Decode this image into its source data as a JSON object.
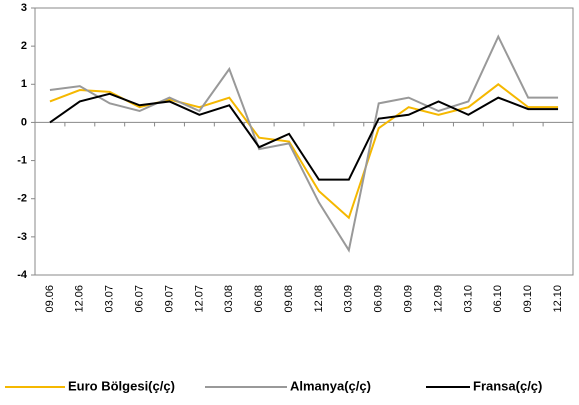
{
  "chart_data": {
    "type": "line",
    "categories": [
      "09.06",
      "12.06",
      "03.07",
      "06.07",
      "09.07",
      "12.07",
      "03.08",
      "06.08",
      "09.08",
      "12.08",
      "03.09",
      "06.09",
      "09.09",
      "12.09",
      "03.10",
      "06.10",
      "09.10",
      "12.10"
    ],
    "series": [
      {
        "name": "Euro Bölgesi(ç/ç)",
        "color": "#f5b800",
        "values": [
          0.55,
          0.85,
          0.8,
          0.4,
          0.6,
          0.4,
          0.65,
          -0.4,
          -0.5,
          -1.8,
          -2.5,
          -0.15,
          0.4,
          0.2,
          0.4,
          1.0,
          0.4,
          0.4
        ]
      },
      {
        "name": "Almanya(ç/ç)",
        "color": "#999999",
        "values": [
          0.85,
          0.95,
          0.5,
          0.3,
          0.65,
          0.3,
          1.4,
          -0.7,
          -0.55,
          -2.1,
          -3.35,
          0.5,
          0.65,
          0.3,
          0.55,
          2.25,
          0.65,
          0.65
        ]
      },
      {
        "name": "Fransa(ç/ç)",
        "color": "#000000",
        "values": [
          0,
          0.55,
          0.75,
          0.45,
          0.55,
          0.2,
          0.45,
          -0.65,
          -0.3,
          -1.5,
          -1.5,
          0.1,
          0.2,
          0.55,
          0.2,
          0.65,
          0.35,
          0.35
        ]
      }
    ],
    "ylim": [
      -4,
      3
    ],
    "yticks": [
      -4,
      -3,
      -2,
      -1,
      0,
      1,
      2,
      3
    ],
    "grid": false
  }
}
